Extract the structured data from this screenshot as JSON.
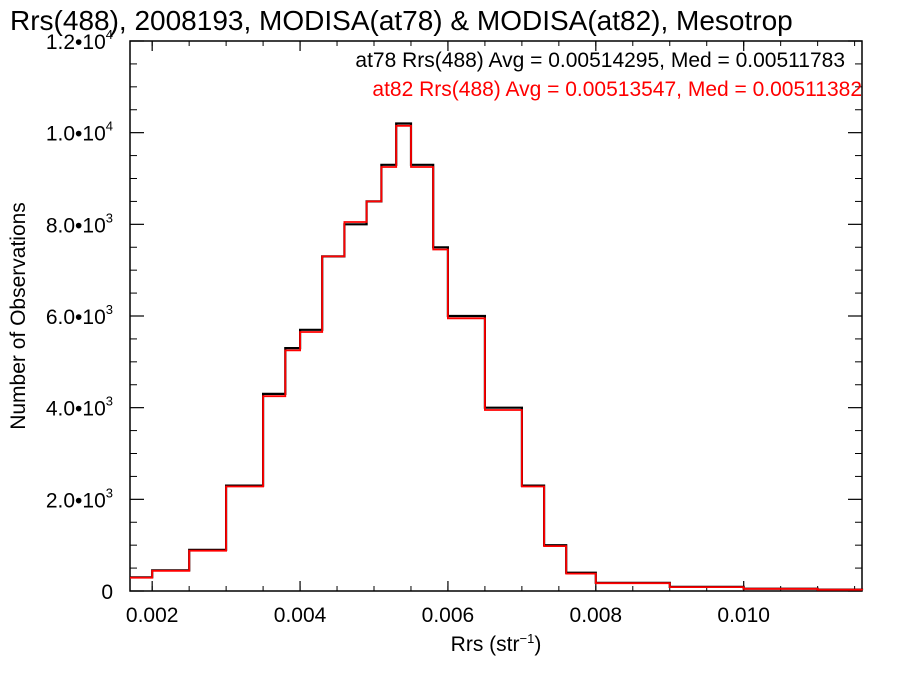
{
  "chart_data": {
    "type": "line",
    "title": "Rrs(488), 2008193, MODISA(at78) & MODISA(at82), Mesotrop",
    "xlabel": "Rrs (str",
    "xlabel_sup": "−1",
    "xlabel_close": ")",
    "ylabel": "Number of Observations",
    "xlim": [
      0.0017,
      0.0116
    ],
    "ylim": [
      0,
      12000
    ],
    "x_ticks": [
      0.002,
      0.004,
      0.006,
      0.008,
      0.01
    ],
    "x_tick_labels": [
      "0.002",
      "0.004",
      "0.006",
      "0.008",
      "0.010"
    ],
    "y_ticks": [
      0,
      2000,
      4000,
      6000,
      8000,
      10000,
      12000
    ],
    "y_tick_labels": [
      {
        "base": "0",
        "exp": ""
      },
      {
        "base": "2.0•10",
        "exp": "3"
      },
      {
        "base": "4.0•10",
        "exp": "3"
      },
      {
        "base": "6.0•10",
        "exp": "3"
      },
      {
        "base": "8.0•10",
        "exp": "3"
      },
      {
        "base": "1.0•10",
        "exp": "4"
      },
      {
        "base": "1.2•10",
        "exp": "4"
      }
    ],
    "annotations": [
      {
        "text": "at78 Rrs(488) Avg = 0.00514295, Med = 0.00511783",
        "color": "#000000"
      },
      {
        "text": "at82 Rrs(488) Avg = 0.00513547, Med = 0.00511382",
        "color": "#ff0000"
      }
    ],
    "series": [
      {
        "color": "#000000",
        "x": [
          0.0017,
          0.002,
          0.0025,
          0.003,
          0.0035,
          0.0038,
          0.004,
          0.0043,
          0.0046,
          0.0049,
          0.0051,
          0.0053,
          0.0055,
          0.0058,
          0.006,
          0.0065,
          0.007,
          0.0073,
          0.0076,
          0.008,
          0.009,
          0.01,
          0.011,
          0.0116
        ],
        "y": [
          300,
          450,
          900,
          2300,
          4300,
          5300,
          5700,
          7300,
          8000,
          8500,
          9300,
          10200,
          9300,
          7500,
          6000,
          4000,
          2300,
          1000,
          400,
          180,
          90,
          50,
          30,
          20
        ]
      },
      {
        "color": "#ff0000",
        "x": [
          0.0017,
          0.002,
          0.0025,
          0.003,
          0.0035,
          0.0038,
          0.004,
          0.0043,
          0.0046,
          0.0049,
          0.0051,
          0.0053,
          0.0055,
          0.0058,
          0.006,
          0.0065,
          0.007,
          0.0073,
          0.0076,
          0.008,
          0.009,
          0.01,
          0.011,
          0.0116
        ],
        "y": [
          290,
          440,
          880,
          2280,
          4250,
          5250,
          5650,
          7300,
          8050,
          8500,
          9250,
          10150,
          9250,
          7450,
          5950,
          3950,
          2280,
          980,
          380,
          170,
          85,
          48,
          28,
          18
        ]
      }
    ]
  }
}
